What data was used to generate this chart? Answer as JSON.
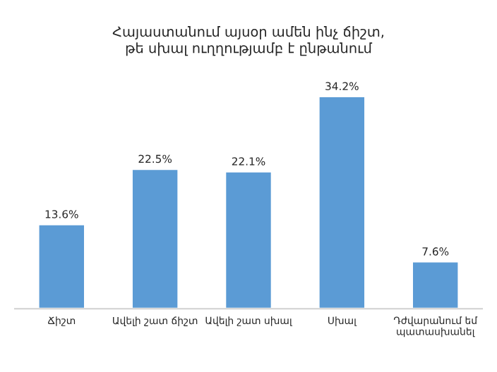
{
  "chart_data": {
    "type": "bar",
    "title": "Հայաստանում այսօր ամեն ինչ ճիշտ,\nթե սխալ ուղղությամբ է ընթանում",
    "categories": [
      "Ճիշտ",
      "Ավելի շատ ճիշտ",
      "Ավելի շատ սխալ",
      "Սխալ",
      "Դժվարանում եմ\nպատասխանել"
    ],
    "values": [
      13.6,
      22.5,
      22.1,
      34.2,
      7.6
    ],
    "value_labels": [
      "13.6%",
      "22.5%",
      "22.1%",
      "34.2%",
      "7.6%"
    ],
    "color": "#5b9bd5",
    "grid": false,
    "legend": false
  }
}
